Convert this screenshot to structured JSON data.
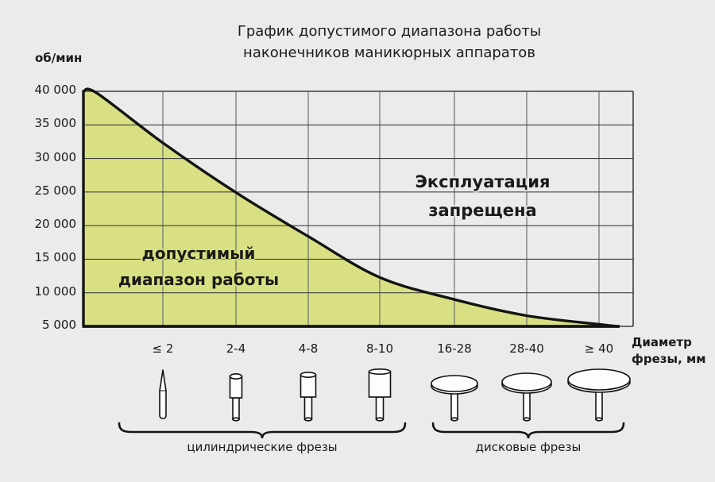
{
  "page": {
    "background": "#ebebeb"
  },
  "title": {
    "line1": "График допустимого диапазона работы",
    "line2": "наконечников маникюрных аппаратов"
  },
  "chart_data": {
    "type": "area",
    "title": "График допустимого диапазона работы наконечников маникюрных аппаратов",
    "y_axis": {
      "unit_label": "об/мин",
      "min": 5000,
      "max": 40000,
      "step": 5000,
      "tick_labels": [
        "40 000",
        "35 000",
        "30 000",
        "25 000",
        "20 000",
        "15 000",
        "10 000",
        "5 000"
      ]
    },
    "x_axis": {
      "title_line1": "Диаметр",
      "title_line2": "фрезы, мм",
      "categories": [
        "≤ 2",
        "2-4",
        "4-8",
        "8-10",
        "16-28",
        "28-40",
        "≥ 40"
      ]
    },
    "category_limits": [
      {
        "category": "≤ 2",
        "max_rpm": 32300
      },
      {
        "category": "2-4",
        "max_rpm": 25000
      },
      {
        "category": "4-8",
        "max_rpm": 18400
      },
      {
        "category": "8-10",
        "max_rpm": 12300
      },
      {
        "category": "16-28",
        "max_rpm": 9000
      },
      {
        "category": "28-40",
        "max_rpm": 6600
      },
      {
        "category": "≥ 40",
        "max_rpm": 5300
      }
    ],
    "curve_points": [
      [
        0,
        40000
      ],
      [
        0.025,
        39700
      ],
      [
        0.145,
        32300
      ],
      [
        0.278,
        24900
      ],
      [
        0.409,
        18400
      ],
      [
        0.539,
        12300
      ],
      [
        0.675,
        9000
      ],
      [
        0.806,
        6600
      ],
      [
        0.938,
        5300
      ],
      [
        0.972,
        5000
      ]
    ],
    "regions": {
      "allowed_line1": "допустимый",
      "allowed_line2": "диапазон работы",
      "forbidden_line1": "Эксплуатация",
      "forbidden_line2": "запрещена"
    },
    "grid": true,
    "legend": "none",
    "colors": {
      "allowed_fill": "#d9e083",
      "background": "#ebebeb",
      "line": "#141414",
      "grid_horizontal": "#3f3f3f",
      "grid_vertical": "#6e6e6e"
    }
  },
  "bits": {
    "items": [
      {
        "icon": "needle-bit-icon",
        "category": "≤ 2"
      },
      {
        "icon": "small-cylinder-bit-icon",
        "category": "2-4"
      },
      {
        "icon": "medium-cylinder-bit-icon",
        "category": "4-8"
      },
      {
        "icon": "large-cylinder-bit-icon",
        "category": "8-10"
      },
      {
        "icon": "small-disc-bit-icon",
        "category": "16-28"
      },
      {
        "icon": "medium-disc-bit-icon",
        "category": "28-40"
      },
      {
        "icon": "large-disc-bit-icon",
        "category": "≥ 40"
      }
    ],
    "groups": [
      {
        "label": "цилиндрические фрезы"
      },
      {
        "label": "дисковые фрезы"
      }
    ]
  }
}
